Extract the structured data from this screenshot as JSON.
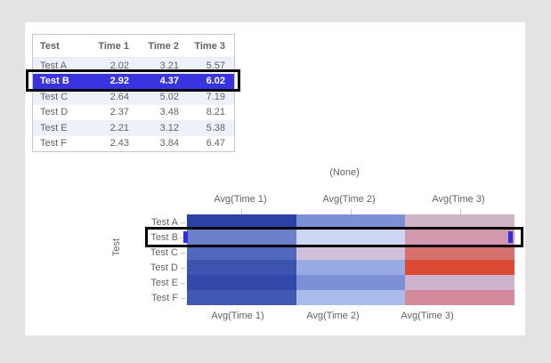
{
  "page_background": "#e3e3e3",
  "panel_background": "#ffffff",
  "table": {
    "columns": [
      "Test",
      "Time 1",
      "Time 2",
      "Time 3"
    ],
    "rows": [
      {
        "test": "Test A",
        "time1": "2.02",
        "time2": "3.21",
        "time3": "5.57",
        "selected": false,
        "striped": true
      },
      {
        "test": "Test B",
        "time1": "2.92",
        "time2": "4.37",
        "time3": "6.02",
        "selected": true,
        "striped": false
      },
      {
        "test": "Test C",
        "time1": "2.64",
        "time2": "5.02",
        "time3": "7.19",
        "selected": false,
        "striped": true
      },
      {
        "test": "Test D",
        "time1": "2.37",
        "time2": "3.48",
        "time3": "8.21",
        "selected": false,
        "striped": false
      },
      {
        "test": "Test E",
        "time1": "2.21",
        "time2": "3.12",
        "time3": "5.38",
        "selected": false,
        "striped": true
      },
      {
        "test": "Test F",
        "time1": "2.43",
        "time2": "3.84",
        "time3": "6.47",
        "selected": false,
        "striped": false
      }
    ],
    "selected_row_label": "Test B",
    "colors": {
      "selected_bg": "#3a33e0",
      "selected_text": "#ffffff",
      "stripe_bg": "#eef1f9",
      "text": "#5f6368",
      "border": "#c4c7cc",
      "selection_outline": "#000000"
    }
  },
  "chart_data": {
    "type": "heatmap",
    "title": "(None)",
    "ylabel": "Test",
    "x_labels_top": [
      "Avg(Time 1)",
      "Avg(Time 2)",
      "Avg(Time 3)"
    ],
    "x_labels_bottom": [
      "Avg(Time 1)",
      "Avg(Time 2)",
      "Avg(Time 3)"
    ],
    "y_labels": [
      "Test A",
      "Test B",
      "Test C",
      "Test D",
      "Test E",
      "Test F"
    ],
    "values": [
      [
        2.02,
        3.21,
        5.57
      ],
      [
        2.92,
        4.37,
        6.02
      ],
      [
        2.64,
        5.02,
        7.19
      ],
      [
        2.37,
        3.48,
        8.21
      ],
      [
        2.21,
        3.12,
        5.38
      ],
      [
        2.43,
        3.84,
        6.47
      ]
    ],
    "cell_colors": [
      [
        "#2c41a6",
        "#7c90d5",
        "#d1b3c8"
      ],
      [
        "#6c80ca",
        "#cdd7f3",
        "#d199ad"
      ],
      [
        "#5268bd",
        "#d1c0dc",
        "#d5726e"
      ],
      [
        "#3d54af",
        "#99aae3",
        "#da4a35"
      ],
      [
        "#3349a9",
        "#7c90d5",
        "#cfb2ce"
      ],
      [
        "#4259b4",
        "#abbcea",
        "#d38a9a"
      ]
    ],
    "colorscale": "dark blue (low) to light to red (high)",
    "selected_row": "Test B",
    "selection_outline_color": "#000000",
    "selection_handle_color": "#2f2ee0",
    "grid": false,
    "legend_position": "none"
  }
}
